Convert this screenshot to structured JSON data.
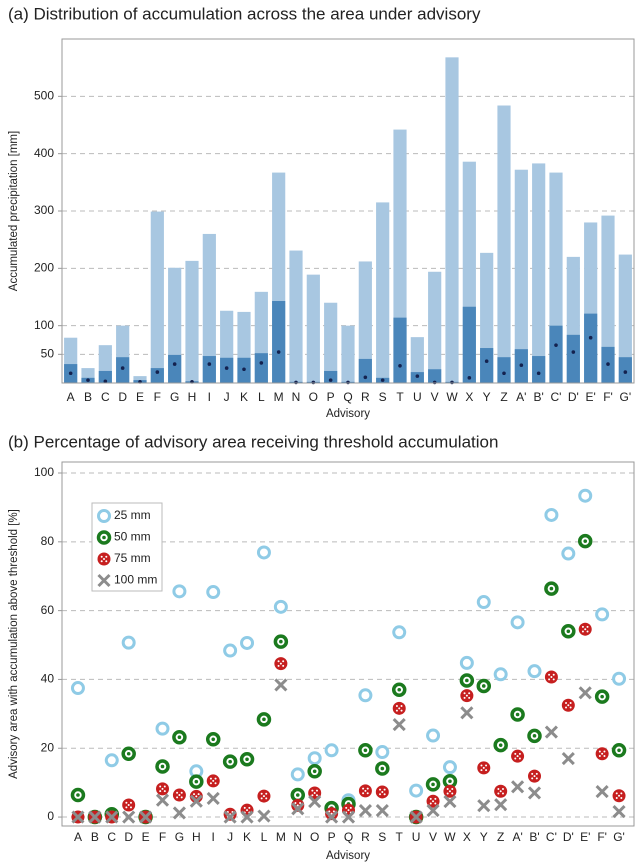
{
  "chart_data": [
    {
      "type": "bar",
      "title": "(a) Distribution of accumulation across the area under advisory",
      "x_label": "Advisory",
      "y_label": "Accumulated precipitation [mm]",
      "categories": [
        "A",
        "B",
        "C",
        "D",
        "E",
        "F",
        "G",
        "H",
        "I",
        "J",
        "K",
        "L",
        "M",
        "N",
        "O",
        "P",
        "Q",
        "R",
        "S",
        "T",
        "U",
        "V",
        "W",
        "X",
        "Y",
        "Z",
        "A'",
        "B'",
        "C'",
        "D'",
        "E'",
        "F'",
        "G'"
      ],
      "series": [
        {
          "style": "bar",
          "color": "#a8c7e1",
          "values": [
            79,
            26,
            66,
            100,
            12,
            299,
            201,
            213,
            260,
            126,
            124,
            159,
            367,
            231,
            189,
            140,
            100,
            212,
            315,
            442,
            80,
            194,
            568,
            386,
            227,
            484,
            372,
            383,
            367,
            220,
            280,
            292,
            224
          ]
        },
        {
          "style": "bar",
          "color": "#4a86ba",
          "values": [
            33,
            9,
            21,
            45,
            5,
            26,
            49,
            3,
            47,
            44,
            44,
            52,
            143,
            2,
            2,
            21,
            2,
            42,
            9,
            114,
            19,
            24,
            2,
            133,
            61,
            45,
            59,
            47,
            100,
            84,
            121,
            63,
            45
          ]
        },
        {
          "style": "dot",
          "color": "#14224f",
          "values": [
            17,
            5,
            3,
            26,
            2,
            19,
            33,
            2,
            33,
            26,
            24,
            35,
            54,
            1,
            1,
            5,
            1,
            10,
            5,
            30,
            12,
            1,
            1,
            9,
            38,
            17,
            31,
            17,
            66,
            54,
            79,
            33,
            19
          ]
        }
      ],
      "ylim": [
        0,
        600
      ],
      "yticks": [
        50,
        100,
        200,
        300,
        400,
        500
      ],
      "grid": true
    },
    {
      "type": "scatter",
      "title": "(b) Percentage of advisory area receiving threshold accumulation",
      "x_label": "Advisory",
      "y_label": "Advisory area with accumulation above threshold [%]",
      "categories": [
        "A",
        "B",
        "C",
        "D",
        "E",
        "F",
        "G",
        "H",
        "I",
        "J",
        "K",
        "L",
        "M",
        "N",
        "O",
        "P",
        "Q",
        "R",
        "S",
        "T",
        "U",
        "V",
        "W",
        "X",
        "Y",
        "Z",
        "A'",
        "B'",
        "C'",
        "D'",
        "E'",
        "F'",
        "G'"
      ],
      "series": [
        {
          "name": "25 mm",
          "marker": "ring",
          "color": "#8fcbe6",
          "values": [
            37.5,
            0,
            16.5,
            50.7,
            0,
            25.7,
            65.6,
            13.3,
            65.4,
            48.4,
            50.6,
            76.9,
            61.1,
            12.4,
            17.1,
            19.4,
            4.9,
            35.4,
            18.9,
            53.7,
            7.7,
            23.7,
            14.5,
            44.8,
            62.5,
            41.5,
            56.6,
            42.4,
            87.8,
            76.6,
            93.4,
            58.9,
            40.2
          ]
        },
        {
          "name": "50 mm",
          "marker": "target",
          "color": "#1b7a1e",
          "values": [
            6.4,
            0,
            0.8,
            18.4,
            0,
            14.7,
            23.2,
            10.3,
            22.6,
            16.1,
            16.8,
            28.4,
            51.0,
            6.4,
            13.3,
            2.6,
            3.8,
            19.4,
            14.1,
            37.0,
            0,
            9.5,
            10.4,
            39.7,
            38.1,
            20.9,
            29.8,
            23.6,
            66.4,
            54.0,
            80.2,
            35.0,
            19.4
          ]
        },
        {
          "name": "75 mm",
          "marker": "dotted",
          "color": "#c61f1f",
          "values": [
            0,
            0,
            0,
            3.5,
            0,
            8.2,
            6.4,
            6.0,
            10.5,
            0.8,
            2.0,
            6.1,
            44.6,
            3.4,
            7.0,
            1.0,
            2.0,
            7.6,
            7.3,
            31.6,
            0,
            4.6,
            7.5,
            35.3,
            14.3,
            7.5,
            17.7,
            11.9,
            40.7,
            32.5,
            54.6,
            18.4,
            6.2
          ]
        },
        {
          "name": "100 mm",
          "marker": "x",
          "color": "#8c8c8c",
          "values": [
            0,
            0,
            0,
            0,
            0,
            4.9,
            1.2,
            4.6,
            5.4,
            0,
            0,
            0.3,
            38.4,
            2.4,
            4.5,
            0,
            0,
            1.9,
            1.9,
            26.9,
            0,
            1.9,
            4.5,
            30.3,
            3.3,
            3.6,
            8.8,
            7.0,
            24.7,
            17.0,
            36.1,
            7.4,
            1.6
          ]
        }
      ],
      "ylim": [
        -2.6,
        103.2
      ],
      "yticks": [
        0,
        20,
        40,
        60,
        80,
        100
      ],
      "grid": true,
      "legend": "upper left"
    }
  ]
}
